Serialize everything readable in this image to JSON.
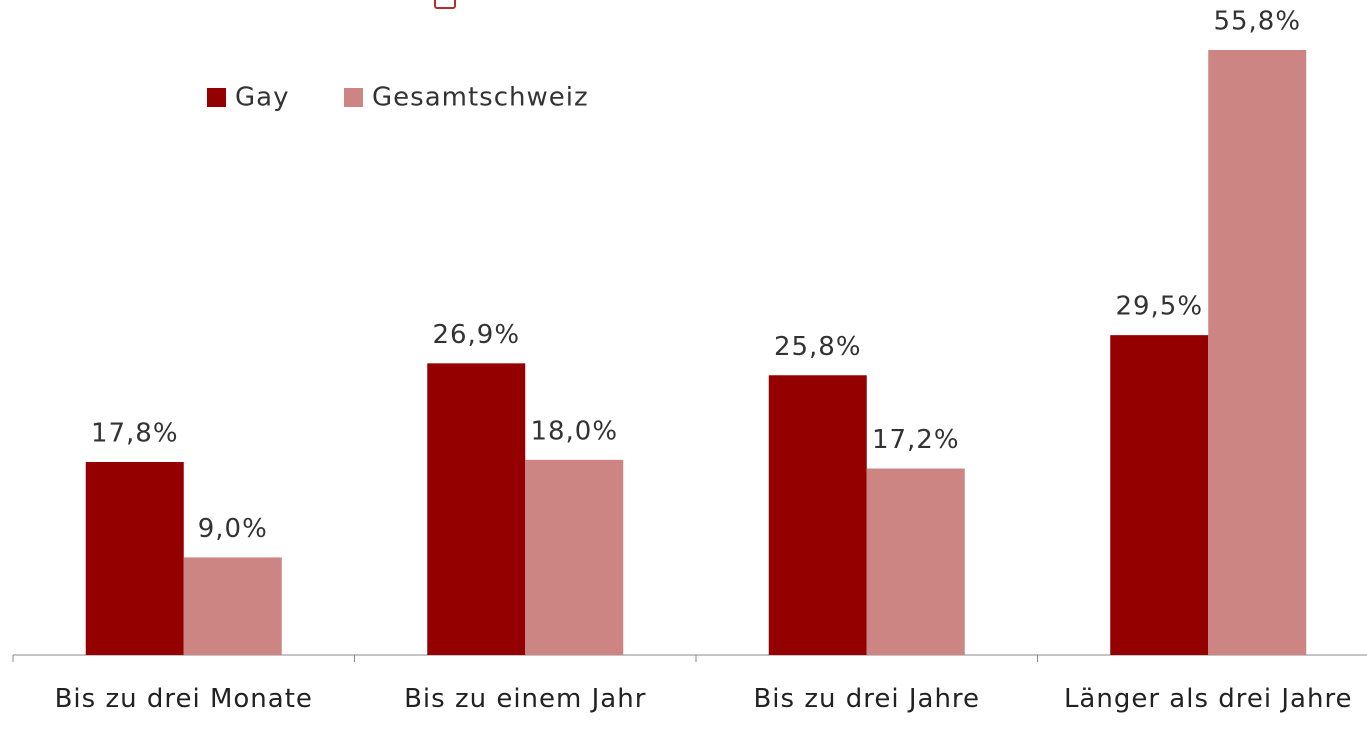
{
  "chart_data": {
    "type": "bar",
    "categories": [
      "Bis zu drei Monate",
      "Bis zu einem Jahr",
      "Bis zu drei Jahre",
      "Länger als drei Jahre"
    ],
    "series": [
      {
        "name": "Gay",
        "color": "#940000",
        "values": [
          17.8,
          26.9,
          25.8,
          29.5
        ],
        "value_labels": [
          "17,8%",
          "26,9%",
          "25,8%",
          "29,5%"
        ]
      },
      {
        "name": "Gesamtschweiz",
        "color": "#cc8583",
        "values": [
          9.0,
          18.0,
          17.2,
          55.8
        ],
        "value_labels": [
          "9,0%",
          "18,0%",
          "17,2%",
          "55,8%"
        ]
      }
    ],
    "legend": "top-left"
  }
}
